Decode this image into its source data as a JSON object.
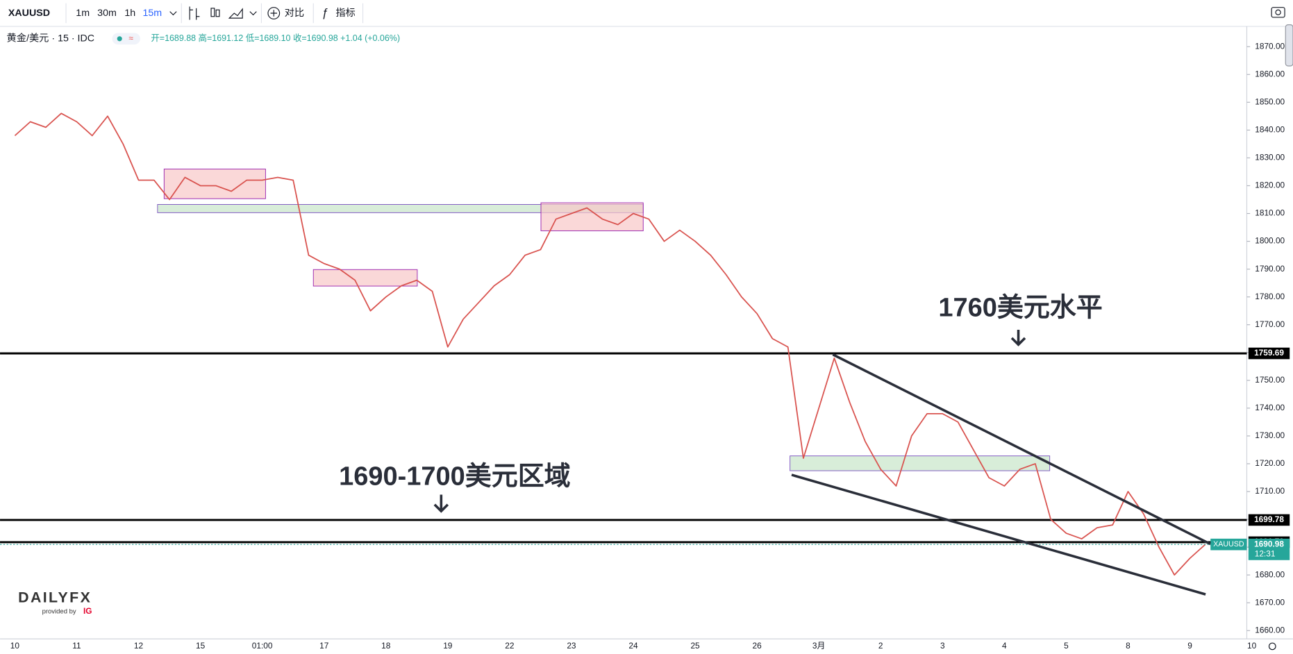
{
  "toolbar": {
    "symbol": "XAUUSD",
    "intervals": [
      "1m",
      "30m",
      "1h",
      "15m"
    ],
    "compare": "对比",
    "indicators": "指标"
  },
  "legend": {
    "name": "黄金/美元 · 15 · IDC",
    "ohlc": "开=1689.88 高=1691.12 低=1689.10 收=1690.98 +1.04 (+0.06%)"
  },
  "logo": {
    "brand": "DAILYFX",
    "provided": "provided by",
    "ig": "IG"
  },
  "chart_data": {
    "type": "line",
    "color": "#d9534f",
    "categories": [
      "10",
      null,
      null,
      null,
      "11",
      null,
      null,
      null,
      "12",
      null,
      null,
      null,
      "15",
      null,
      null,
      null,
      "01:00",
      null,
      null,
      null,
      "17",
      null,
      null,
      null,
      "18",
      null,
      null,
      null,
      "19",
      null,
      null,
      null,
      "22",
      null,
      null,
      null,
      "23",
      null,
      null,
      null,
      "24",
      null,
      null,
      null,
      "25",
      null,
      null,
      null,
      "26",
      null,
      null,
      null,
      "3月",
      null,
      null,
      null,
      "2",
      null,
      null,
      null,
      "3",
      null,
      null,
      null,
      "4",
      null,
      null,
      null,
      "5",
      null,
      null,
      null,
      "8",
      null,
      null,
      null,
      "9",
      null,
      null,
      null,
      "10"
    ],
    "values": [
      1838,
      1843,
      1841,
      1846,
      1843,
      1838,
      1845,
      1835,
      1822,
      1822,
      1815,
      1823,
      1820,
      1820,
      1818,
      1822,
      1822,
      1823,
      1822,
      1795,
      1792,
      1790,
      1786,
      1775,
      1780,
      1784,
      1786,
      1782,
      1762,
      1772,
      1778,
      1784,
      1788,
      1795,
      1797,
      1808,
      1810,
      1812,
      1808,
      1806,
      1810,
      1808,
      1800,
      1804,
      1800,
      1795,
      1788,
      1780,
      1774,
      1765,
      1762,
      1722,
      1740,
      1758,
      1742,
      1728,
      1718,
      1712,
      1730,
      1738,
      1738,
      1735,
      1725,
      1715,
      1712,
      1718,
      1720,
      1700,
      1695,
      1693,
      1697,
      1698,
      1710,
      1702,
      1690,
      1680,
      1686,
      1691,
      null,
      null,
      null
    ],
    "ylim": [
      1657,
      1877
    ],
    "yticks": [
      {
        "value": 1660,
        "label": "1660.00"
      },
      {
        "value": 1670,
        "label": "1670.00"
      },
      {
        "value": 1680,
        "label": "1680.00"
      },
      {
        "value": 1690,
        "label": "1690.00"
      },
      {
        "value": 1700,
        "label": "1700.00"
      },
      {
        "value": 1710,
        "label": "1710.00"
      },
      {
        "value": 1720,
        "label": "1720.00"
      },
      {
        "value": 1730,
        "label": "1730.00"
      },
      {
        "value": 1740,
        "label": "1740.00"
      },
      {
        "value": 1750,
        "label": "1750.00"
      },
      {
        "value": 1760,
        "label": "1760.00"
      },
      {
        "value": 1770,
        "label": "1770.00"
      },
      {
        "value": 1780,
        "label": "1780.00"
      },
      {
        "value": 1790,
        "label": "1790.00"
      },
      {
        "value": 1800,
        "label": "1800.00"
      },
      {
        "value": 1810,
        "label": "1810.00"
      },
      {
        "value": 1820,
        "label": "1820.00"
      },
      {
        "value": 1830,
        "label": "1830.00"
      },
      {
        "value": 1840,
        "label": "1840.00"
      },
      {
        "value": 1850,
        "label": "1850.00"
      },
      {
        "value": 1860,
        "label": "1860.00"
      },
      {
        "value": 1870,
        "label": "1870.00"
      }
    ],
    "levels": [
      1759.69,
      1699.78,
      1691.79
    ],
    "last": {
      "value": 1690.98,
      "symbol": "XAUUSD",
      "countdown": "12:31",
      "color": "#26a69a"
    },
    "annotations": [
      "1760美元水平",
      "1690-1700美元区域"
    ]
  }
}
